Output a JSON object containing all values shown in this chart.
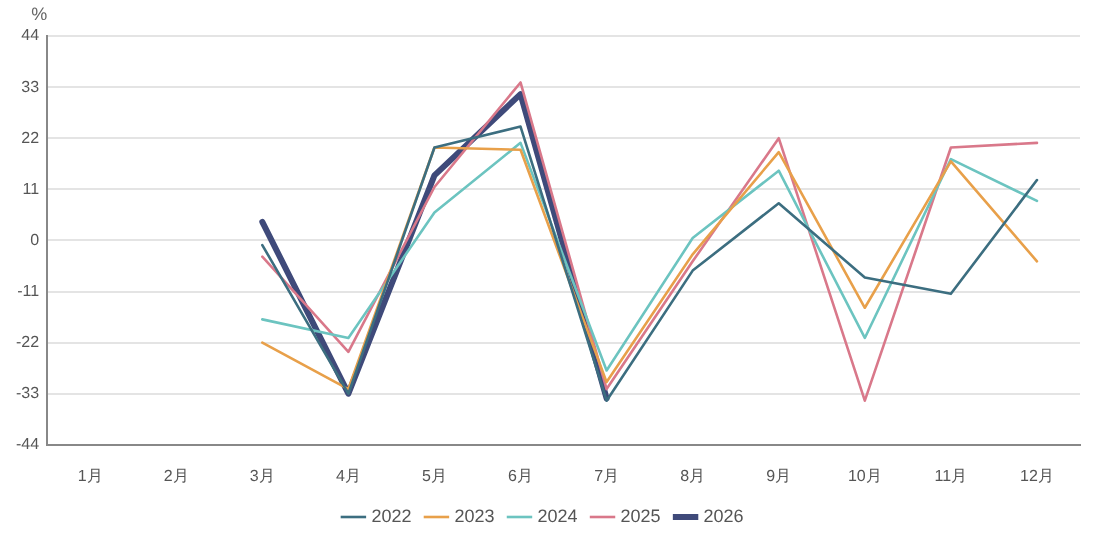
{
  "chart_data": {
    "type": "line",
    "ylabel": "%",
    "categories": [
      "1月",
      "2月",
      "3月",
      "4月",
      "5月",
      "6月",
      "7月",
      "8月",
      "9月",
      "10月",
      "11月",
      "12月"
    ],
    "series": [
      {
        "name": "2022",
        "color": "#3c6e80",
        "values": [
          null,
          null,
          -1,
          -33,
          20,
          24.5,
          -34.5,
          -6.5,
          8,
          -8,
          -11.5,
          13
        ]
      },
      {
        "name": "2023",
        "color": "#e8a04a",
        "values": [
          null,
          null,
          -22,
          -32,
          20,
          19.5,
          -30.5,
          -3,
          19,
          -14.5,
          17,
          -4.5
        ]
      },
      {
        "name": "2024",
        "color": "#6cc4c0",
        "values": [
          null,
          null,
          -17,
          -21,
          6,
          21,
          -28,
          0.5,
          15,
          -21,
          17.5,
          8.5
        ]
      },
      {
        "name": "2025",
        "color": "#d9788a",
        "values": [
          null,
          null,
          -3.5,
          -24,
          11.5,
          34,
          -32,
          -4.5,
          22,
          -34.5,
          20,
          21
        ]
      },
      {
        "name": "2026",
        "color": "#3f4a7a",
        "values": [
          null,
          null,
          4,
          -33,
          14,
          31.5,
          -34,
          null,
          null,
          null,
          null,
          null
        ]
      }
    ],
    "ylim": [
      -44,
      44
    ],
    "yticks": [
      -44,
      -33,
      -22,
      -11,
      0,
      11,
      22,
      33,
      44
    ],
    "grid": "y",
    "legend": "bottom",
    "marker": "none",
    "line_style": "solid"
  }
}
